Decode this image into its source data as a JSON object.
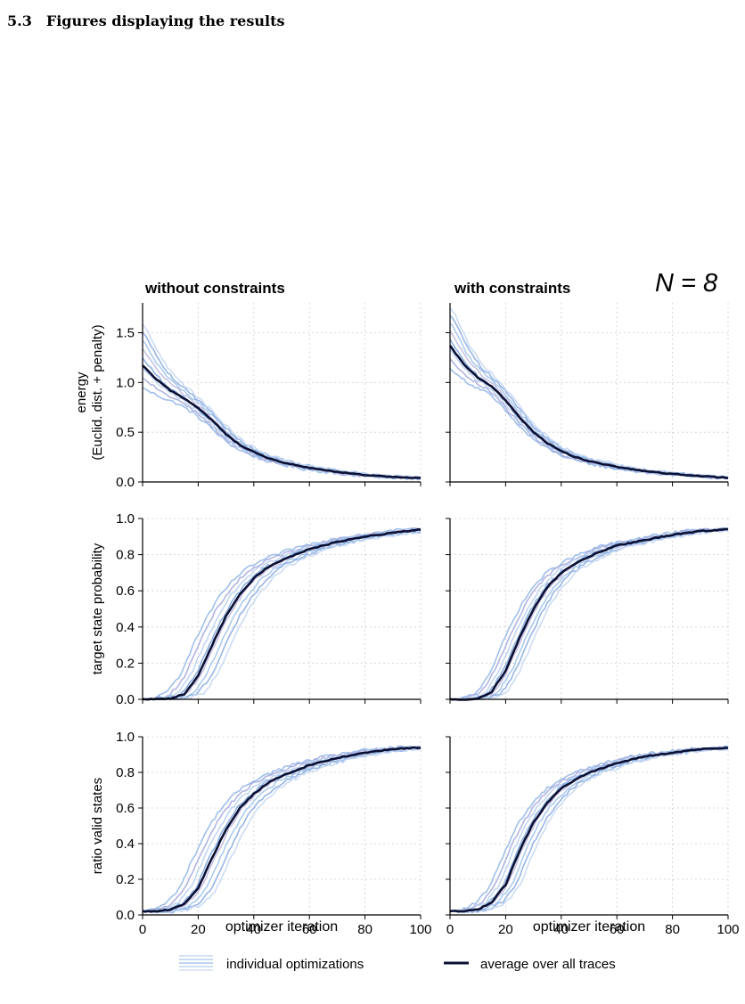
{
  "section": {
    "number": "5.3",
    "title": "Figures displaying the results"
  },
  "figure": {
    "n_label": "N = 8",
    "columns": [
      {
        "title": "without constraints",
        "xlabel": "optimizer iteration"
      },
      {
        "title": "with constraints",
        "xlabel": "optimizer iteration"
      }
    ],
    "legend": {
      "individual": "individual optimizations",
      "average": "average over all traces"
    },
    "colors": {
      "average": "#0b1033",
      "individual": [
        "#8fb4e6",
        "#a3a8dc",
        "#b7cff0",
        "#7aa5dd",
        "#bcb9e0",
        "#9ec2ea",
        "#86a9e0",
        "#c3d6f2"
      ],
      "grid": "#cfcfcf"
    }
  },
  "chart_data": [
    {
      "type": "line",
      "row": 0,
      "col": 0,
      "title": "without constraints",
      "ylabel": "energy\n(Euclid. dist. + penalty)",
      "xlabel": "",
      "xlim": [
        0,
        100
      ],
      "ylim": [
        0,
        1.8
      ],
      "xticks": [
        0,
        20,
        40,
        60,
        80,
        100
      ],
      "yticks": [
        0.0,
        0.5,
        1.0,
        1.5
      ],
      "grid": true,
      "x": [
        0,
        5,
        10,
        15,
        20,
        25,
        30,
        35,
        40,
        45,
        50,
        60,
        70,
        80,
        90,
        100
      ],
      "series": [
        {
          "values": [
            1.17,
            1.03,
            0.92,
            0.84,
            0.74,
            0.62,
            0.48,
            0.37,
            0.3,
            0.24,
            0.2,
            0.14,
            0.1,
            0.07,
            0.05,
            0.04
          ]
        }
      ],
      "individual_count": 8,
      "individual_spread": 0.07,
      "initial_spread": 0.5
    },
    {
      "type": "line",
      "row": 0,
      "col": 1,
      "title": "with constraints",
      "ylabel": "",
      "xlabel": "",
      "xlim": [
        0,
        100
      ],
      "ylim": [
        0,
        1.8
      ],
      "xticks": [
        0,
        20,
        40,
        60,
        80,
        100
      ],
      "yticks": [
        0.0,
        0.5,
        1.0,
        1.5
      ],
      "grid": true,
      "x": [
        0,
        5,
        10,
        15,
        20,
        25,
        30,
        35,
        40,
        45,
        50,
        60,
        70,
        80,
        90,
        100
      ],
      "series": [
        {
          "values": [
            1.37,
            1.18,
            1.05,
            0.96,
            0.82,
            0.65,
            0.5,
            0.39,
            0.31,
            0.25,
            0.21,
            0.15,
            0.11,
            0.08,
            0.06,
            0.04
          ]
        }
      ],
      "individual_count": 8,
      "individual_spread": 0.07,
      "initial_spread": 0.45
    },
    {
      "type": "line",
      "row": 1,
      "col": 0,
      "title": "",
      "ylabel": "target state probability",
      "xlabel": "",
      "xlim": [
        0,
        100
      ],
      "ylim": [
        0,
        1.0
      ],
      "xticks": [
        0,
        20,
        40,
        60,
        80,
        100
      ],
      "yticks": [
        0.0,
        0.2,
        0.4,
        0.6,
        0.8,
        1.0
      ],
      "grid": true,
      "x": [
        0,
        5,
        10,
        15,
        20,
        25,
        30,
        35,
        40,
        45,
        50,
        60,
        70,
        80,
        90,
        100
      ],
      "series": [
        {
          "values": [
            0.0,
            0.0,
            0.005,
            0.03,
            0.13,
            0.3,
            0.46,
            0.58,
            0.67,
            0.73,
            0.77,
            0.83,
            0.87,
            0.9,
            0.92,
            0.94
          ]
        }
      ],
      "individual_count": 8,
      "individual_spread": 0.09,
      "initial_spread": 0
    },
    {
      "type": "line",
      "row": 1,
      "col": 1,
      "title": "",
      "ylabel": "",
      "xlabel": "",
      "xlim": [
        0,
        100
      ],
      "ylim": [
        0,
        1.0
      ],
      "xticks": [
        0,
        20,
        40,
        60,
        80,
        100
      ],
      "yticks": [
        0.0,
        0.2,
        0.4,
        0.6,
        0.8,
        1.0
      ],
      "grid": true,
      "x": [
        0,
        5,
        10,
        15,
        20,
        25,
        30,
        35,
        40,
        45,
        50,
        60,
        70,
        80,
        90,
        100
      ],
      "series": [
        {
          "values": [
            0.0,
            0.0,
            0.005,
            0.04,
            0.16,
            0.34,
            0.5,
            0.62,
            0.7,
            0.75,
            0.79,
            0.85,
            0.88,
            0.91,
            0.93,
            0.94
          ]
        }
      ],
      "individual_count": 8,
      "individual_spread": 0.07,
      "initial_spread": 0
    },
    {
      "type": "line",
      "row": 2,
      "col": 0,
      "title": "",
      "ylabel": "ratio valid states",
      "xlabel": "optimizer iteration",
      "xlim": [
        0,
        100
      ],
      "ylim": [
        0,
        1.0
      ],
      "xticks": [
        0,
        20,
        40,
        60,
        80,
        100
      ],
      "yticks": [
        0.0,
        0.2,
        0.4,
        0.6,
        0.8,
        1.0
      ],
      "grid": true,
      "x": [
        0,
        5,
        10,
        15,
        20,
        25,
        30,
        35,
        40,
        45,
        50,
        60,
        70,
        80,
        90,
        100
      ],
      "series": [
        {
          "values": [
            0.02,
            0.02,
            0.03,
            0.06,
            0.15,
            0.32,
            0.48,
            0.6,
            0.68,
            0.74,
            0.78,
            0.84,
            0.88,
            0.91,
            0.93,
            0.94
          ]
        }
      ],
      "individual_count": 8,
      "individual_spread": 0.09,
      "initial_spread": 0
    },
    {
      "type": "line",
      "row": 2,
      "col": 1,
      "title": "",
      "ylabel": "",
      "xlabel": "optimizer iteration",
      "xlim": [
        0,
        100
      ],
      "ylim": [
        0,
        1.0
      ],
      "xticks": [
        0,
        20,
        40,
        60,
        80,
        100
      ],
      "yticks": [
        0.0,
        0.2,
        0.4,
        0.6,
        0.8,
        1.0
      ],
      "grid": true,
      "x": [
        0,
        5,
        10,
        15,
        20,
        25,
        30,
        35,
        40,
        45,
        50,
        60,
        70,
        80,
        90,
        100
      ],
      "series": [
        {
          "values": [
            0.02,
            0.02,
            0.03,
            0.07,
            0.17,
            0.36,
            0.52,
            0.63,
            0.71,
            0.76,
            0.8,
            0.85,
            0.89,
            0.91,
            0.93,
            0.94
          ]
        }
      ],
      "individual_count": 8,
      "individual_spread": 0.07,
      "initial_spread": 0
    }
  ]
}
